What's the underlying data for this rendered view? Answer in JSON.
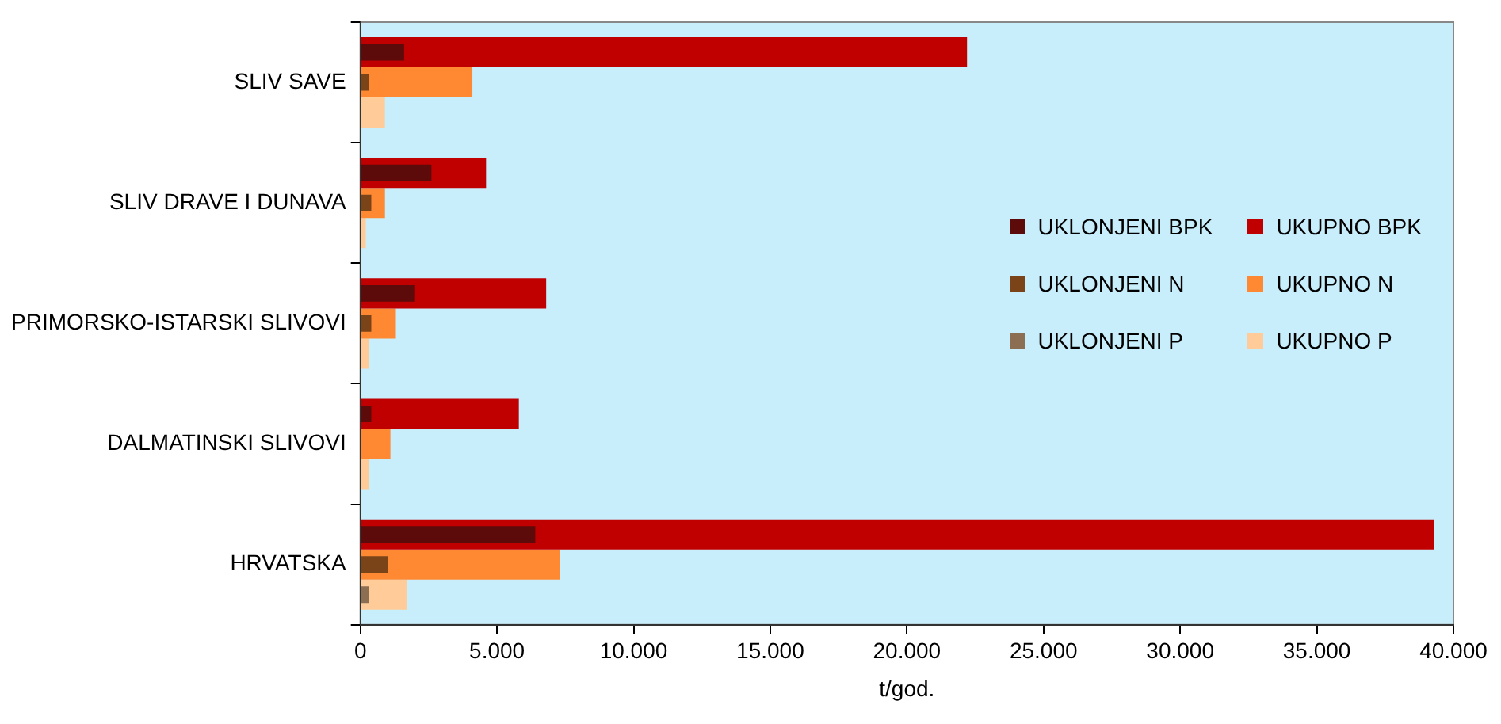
{
  "chart_data": {
    "type": "bar",
    "orientation": "horizontal",
    "xlabel": "t/god.",
    "categories": [
      "SLIV SAVE",
      "SLIV DRAVE I DUNAVA",
      "PRIMORSKO-ISTARSKI SLIVOVI",
      "DALMATINSKI SLIVOVI",
      "HRVATSKA"
    ],
    "series": [
      {
        "name": "UKLONJENI BPK",
        "color": "#5c0a0a",
        "values": [
          1600,
          2600,
          2000,
          400,
          6400
        ]
      },
      {
        "name": "UKUPNO BPK",
        "color": "#c00000",
        "values": [
          22200,
          4600,
          6800,
          5800,
          39300
        ]
      },
      {
        "name": "UKLONJENI N",
        "color": "#7a4418",
        "values": [
          300,
          400,
          400,
          null,
          1000
        ]
      },
      {
        "name": "UKUPNO N",
        "color": "#ff8833",
        "values": [
          4100,
          900,
          1300,
          1100,
          7300
        ]
      },
      {
        "name": "UKLONJENI P",
        "color": "#8c6e52",
        "values": [
          null,
          null,
          null,
          null,
          300
        ]
      },
      {
        "name": "UKUPNO P",
        "color": "#ffcc99",
        "values": [
          900,
          200,
          300,
          300,
          1700
        ]
      }
    ],
    "xlim": [
      0,
      40000
    ],
    "xticks": [
      0,
      {
        "value": 5000,
        "label": "5.000"
      },
      {
        "value": 10000,
        "label": "10.000"
      },
      {
        "value": 15000,
        "label": "15.000"
      },
      {
        "value": 20000,
        "label": "20.000"
      },
      {
        "value": 25000,
        "label": "25.000"
      },
      {
        "value": 30000,
        "label": "30.000"
      },
      {
        "value": 35000,
        "label": "35.000"
      },
      {
        "value": 40000,
        "label": "40.000"
      }
    ],
    "grid": false,
    "legend": "right"
  }
}
